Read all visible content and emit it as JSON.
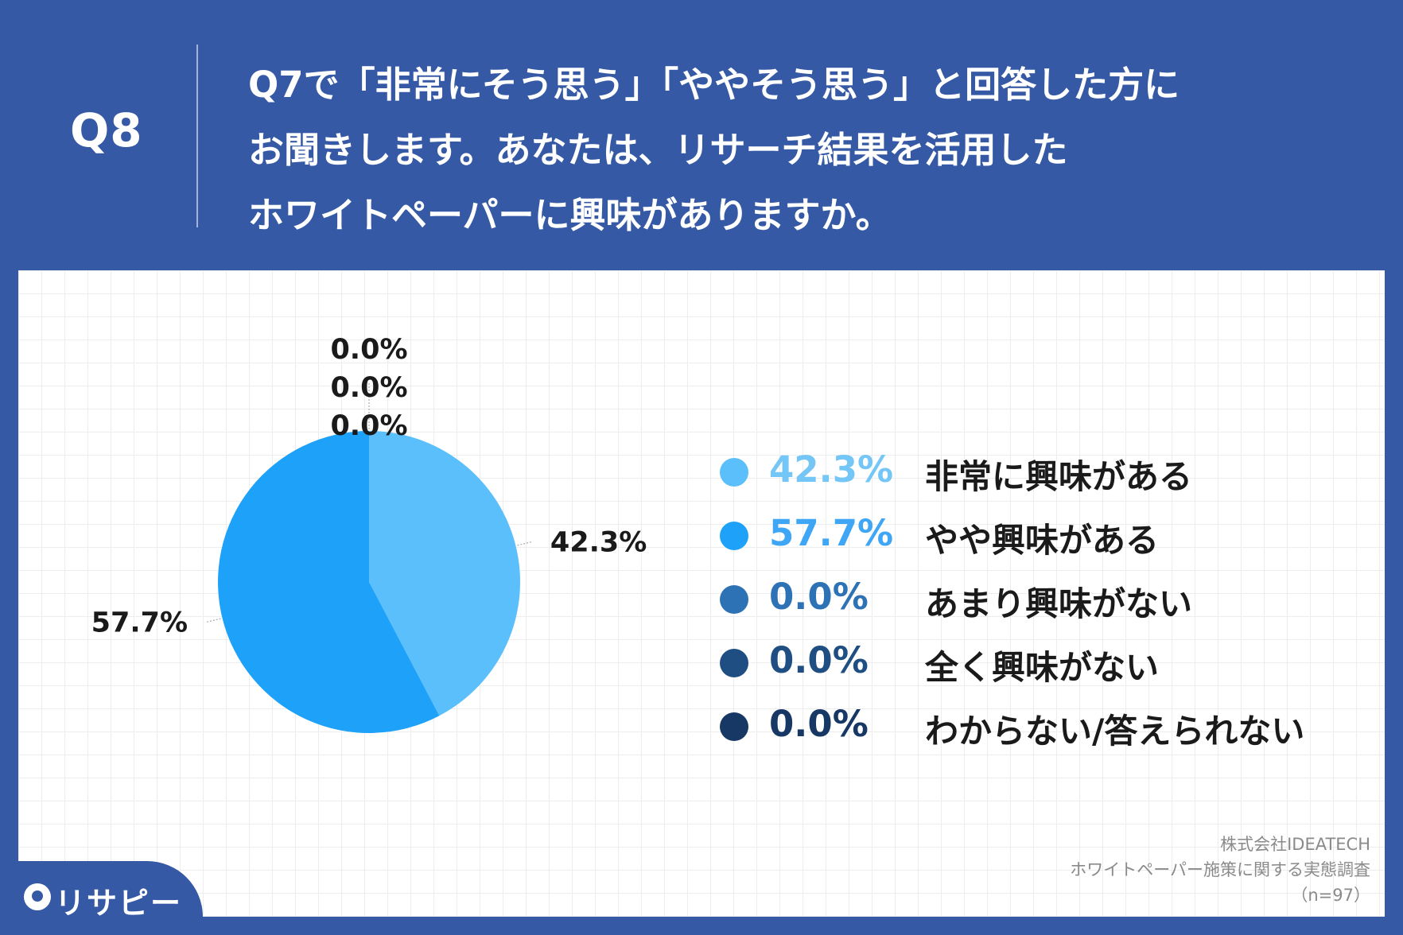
{
  "header": {
    "qnum": "Q8",
    "lines": [
      "Q7で「非常にそう思う」「ややそう思う」と回答した方に",
      "お聞きします。あなたは、リサーチ結果を活用した",
      "ホワイトペーパーに興味がありますか。"
    ]
  },
  "chart_data": {
    "type": "pie",
    "categories": [
      "非常に興味がある",
      "やや興味がある",
      "あまり興味がない",
      "全く興味がない",
      "わからない/答えられない"
    ],
    "values": [
      42.3,
      57.7,
      0.0,
      0.0,
      0.0
    ],
    "value_labels": [
      "42.3%",
      "57.7%",
      "0.0%",
      "0.0%",
      "0.0%"
    ],
    "colors": [
      "#5BBFFB",
      "#1EA1F9",
      "#2E72B6",
      "#1F4F82",
      "#173865"
    ],
    "legend_pct_colors": [
      "#74C6F7",
      "#3FA6F5",
      "#2E72B6",
      "#1F4F82",
      "#173865"
    ],
    "legend_placement": "right",
    "start_angle_deg": 0,
    "direction": "clockwise"
  },
  "credit": {
    "line1": "株式会社IDEATECH",
    "line2": "ホワイトペーパー施策に関する実態調査",
    "line3": "（n=97）"
  },
  "logo": {
    "text": "リサピー"
  }
}
